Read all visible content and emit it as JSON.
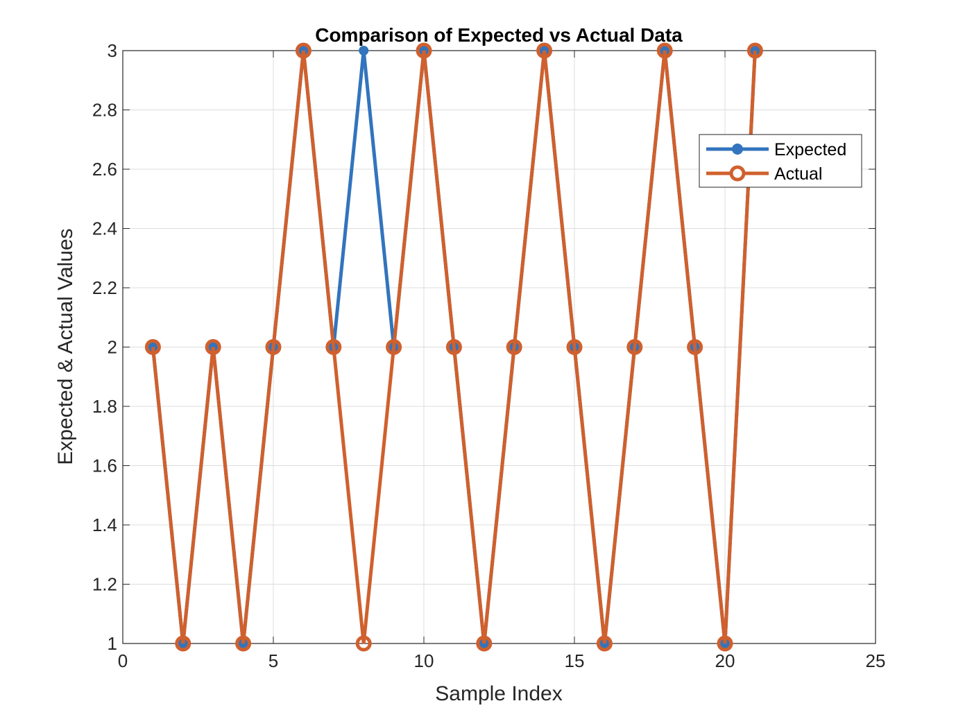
{
  "chart_data": {
    "type": "line",
    "title": "Comparison of Expected vs Actual Data",
    "xlabel": "Sample Index",
    "ylabel": "Expected & Actual Values",
    "xlim": [
      0,
      25
    ],
    "ylim": [
      1,
      3
    ],
    "xticks": [
      0,
      5,
      10,
      15,
      20,
      25
    ],
    "yticks": [
      1,
      1.2,
      1.4,
      1.6,
      1.8,
      2,
      2.2,
      2.4,
      2.6,
      2.8,
      3
    ],
    "ytick_labels": [
      "1",
      "1.2",
      "1.4",
      "1.6",
      "1.8",
      "2",
      "2.2",
      "2.4",
      "2.6",
      "2.8",
      "3"
    ],
    "grid": true,
    "legend_position": "top-right",
    "x": [
      1,
      2,
      3,
      4,
      5,
      6,
      7,
      8,
      9,
      10,
      11,
      12,
      13,
      14,
      15,
      16,
      17,
      18,
      19,
      20,
      21
    ],
    "series": [
      {
        "name": "Expected",
        "color": "#3274bd",
        "marker": "filled-circle",
        "values": [
          2,
          1,
          2,
          1,
          2,
          3,
          2,
          3,
          2,
          3,
          2,
          1,
          2,
          3,
          2,
          1,
          2,
          3,
          2,
          1,
          3
        ]
      },
      {
        "name": "Actual",
        "color": "#d0602d",
        "marker": "open-circle",
        "values": [
          2,
          1,
          2,
          1,
          2,
          3,
          2,
          1,
          2,
          3,
          2,
          1,
          2,
          3,
          2,
          1,
          2,
          3,
          2,
          1,
          3
        ]
      }
    ]
  }
}
